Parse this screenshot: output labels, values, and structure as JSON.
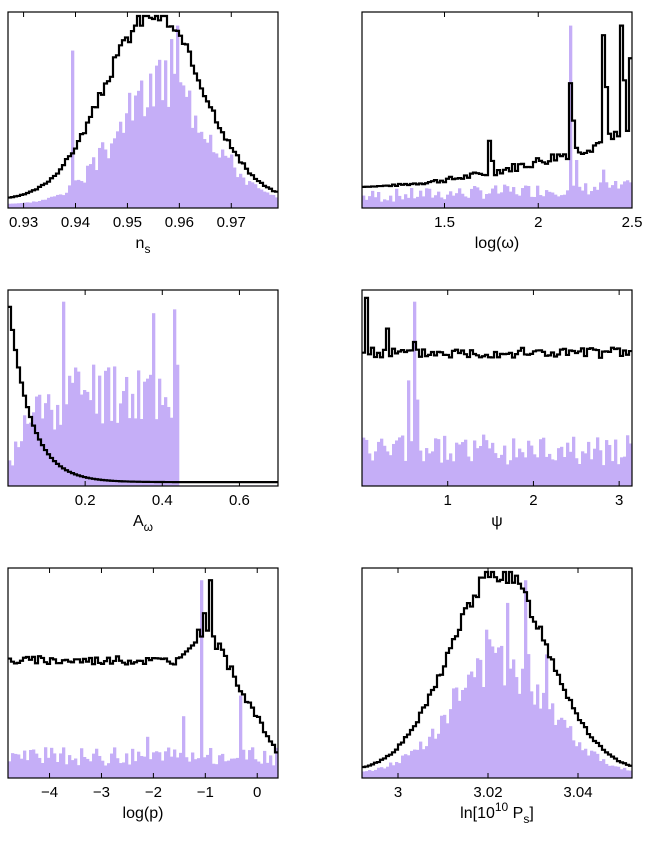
{
  "colors": {
    "purple": "#c5aef7",
    "line": "#000000"
  },
  "chart_data": [
    {
      "type": "histogram",
      "id": "ns",
      "xlabel": {
        "main": "n",
        "sub": "s"
      },
      "xlim": [
        0.927,
        0.979
      ],
      "xticks": [
        0.93,
        0.94,
        0.95,
        0.96,
        0.97
      ],
      "xtick_labels": [
        "0.93",
        "0.94",
        "0.95",
        "0.96",
        "0.97"
      ],
      "dist": "gauss",
      "center": 0.955,
      "sigma": 0.0095,
      "floor": 0.02,
      "purple_peak": 0.62,
      "purple_center": 0.957,
      "purple_sigma": 0.009,
      "spikes": [
        [
          0.9395,
          0.82
        ],
        [
          0.9585,
          0.88
        ],
        [
          0.9595,
          0.95
        ],
        [
          0.9545,
          0.7
        ]
      ],
      "line_peak": 1.0,
      "line_floor": 0.04,
      "seed": 3
    },
    {
      "type": "histogram",
      "id": "logw",
      "xlabel": {
        "main": "log(ω)",
        "sub": ""
      },
      "xlim": [
        1.06,
        2.5
      ],
      "xticks": [
        1.5,
        2,
        2.5
      ],
      "xtick_labels": [
        "1.5",
        "2",
        "2.5"
      ],
      "dist": "rising",
      "line_base": 0.06,
      "purple_base": 0.06,
      "spikes": [
        [
          2.17,
          0.95
        ],
        [
          2.2,
          0.25
        ],
        [
          2.35,
          0.2
        ]
      ],
      "line_spikes": [
        [
          1.74,
          0.35
        ],
        [
          2.17,
          0.65
        ],
        [
          2.35,
          0.9
        ],
        [
          2.44,
          0.95
        ],
        [
          2.49,
          0.78
        ]
      ],
      "seed": 7
    },
    {
      "type": "histogram",
      "id": "Aw",
      "xlabel": {
        "main": "A",
        "sub": "ω"
      },
      "xlim": [
        0,
        0.7
      ],
      "xticks": [
        0.2,
        0.4,
        0.6
      ],
      "xtick_labels": [
        "0.2",
        "0.4",
        "0.6"
      ],
      "dist": "decay",
      "purple_cutoff": 0.44,
      "spikes": [
        [
          0.145,
          0.96
        ],
        [
          0.2,
          0.5
        ],
        [
          0.255,
          0.6
        ],
        [
          0.32,
          0.48
        ],
        [
          0.38,
          0.9
        ],
        [
          0.435,
          0.92
        ]
      ],
      "seed": 11
    },
    {
      "type": "histogram",
      "id": "psi",
      "xlabel": {
        "main": "ψ",
        "sub": ""
      },
      "xlim": [
        0.0,
        3.15
      ],
      "xticks": [
        1,
        2,
        3
      ],
      "xtick_labels": [
        "1",
        "2",
        "3"
      ],
      "dist": "flat",
      "line_level": 0.7,
      "purple_level": 0.18,
      "spikes": [
        [
          0.6,
          0.96
        ],
        [
          0.55,
          0.55
        ],
        [
          0.66,
          0.45
        ]
      ],
      "line_spikes": [
        [
          0.05,
          0.98
        ],
        [
          0.3,
          0.82
        ],
        [
          0.6,
          0.75
        ]
      ],
      "seed": 5
    },
    {
      "type": "histogram",
      "id": "logp",
      "xlabel": {
        "main": "log(p)",
        "sub": ""
      },
      "xlim": [
        -4.8,
        0.4
      ],
      "xticks": [
        -4,
        -3,
        -2,
        -1,
        0
      ],
      "xtick_labels": [
        "−4",
        "−3",
        "−2",
        "−1",
        "0"
      ],
      "dist": "plateau",
      "line_level": 0.58,
      "purple_level": 0.1,
      "spikes": [
        [
          -1.1,
          0.96
        ],
        [
          -1.4,
          0.3
        ],
        [
          -0.3,
          0.4
        ],
        [
          -2.1,
          0.2
        ]
      ],
      "line_spikes": [
        [
          -0.9,
          0.96
        ],
        [
          -1.0,
          0.8
        ],
        [
          -1.15,
          0.72
        ]
      ],
      "seed": 9
    },
    {
      "type": "histogram",
      "id": "lnPs",
      "xlabel": {
        "main": "ln[10",
        "sup": "10",
        "mid": " P",
        "sub": "s",
        "end": "]"
      },
      "xlim": [
        2.992,
        3.052
      ],
      "xticks": [
        3.0,
        3.02,
        3.04
      ],
      "xtick_labels": [
        "3",
        "3.02",
        "3.04"
      ],
      "dist": "gauss",
      "center": 3.0225,
      "sigma": 0.011,
      "floor": 0.02,
      "purple_peak": 0.55,
      "purple_center": 3.023,
      "purple_sigma": 0.011,
      "spikes": [
        [
          3.0245,
          0.85
        ],
        [
          3.0285,
          0.96
        ],
        [
          3.033,
          0.6
        ],
        [
          3.0195,
          0.72
        ]
      ],
      "line_peak": 1.0,
      "line_floor": 0.03,
      "seed": 13
    }
  ]
}
